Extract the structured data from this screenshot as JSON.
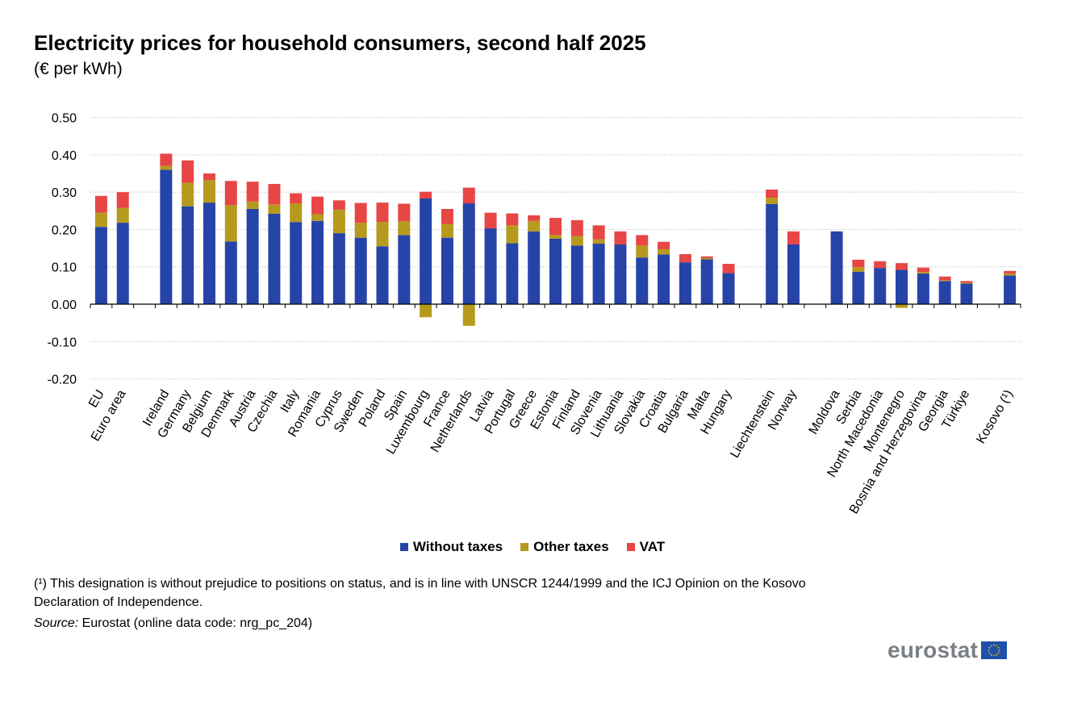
{
  "chart_data": {
    "type": "bar",
    "stacked": true,
    "title": "Electricity prices for household consumers, second half 2025",
    "subtitle": "(€ per kWh)",
    "ylim": [
      -0.2,
      0.5
    ],
    "yticks": [
      "0.50",
      "0.40",
      "0.30",
      "0.20",
      "0.10",
      "0.00",
      "-0.10",
      "-0.20"
    ],
    "grid": true,
    "legend_position": "bottom",
    "categories": [
      "EU",
      "Euro area",
      "",
      "Ireland",
      "Germany",
      "Belgium",
      "Denmark",
      "Austria",
      "Czechia",
      "Italy",
      "Romania",
      "Cyprus",
      "Sweden",
      "Poland",
      "Spain",
      "Luxembourg",
      "France",
      "Netherlands",
      "Latvia",
      "Portugal",
      "Greece",
      "Estonia",
      "Finland",
      "Slovenia",
      "Lithuania",
      "Slovakia",
      "Croatia",
      "Bulgaria",
      "Malta",
      "Hungary",
      "",
      "Liechtenstein",
      "Norway",
      "",
      "Moldova",
      "Serbia",
      "North Macedonia",
      "Montenegro",
      "Bosnia and Herzegovina",
      "Georgia",
      "Türkiye",
      "",
      "Kosovo (¹)"
    ],
    "series": [
      {
        "name": "Without taxes",
        "color": "#2644a8",
        "values": [
          0.207,
          0.218,
          null,
          0.36,
          0.262,
          0.272,
          0.168,
          0.255,
          0.242,
          0.22,
          0.223,
          0.19,
          0.178,
          0.155,
          0.185,
          0.283,
          0.178,
          0.27,
          0.203,
          0.163,
          0.195,
          0.175,
          0.157,
          0.162,
          0.16,
          0.125,
          0.133,
          0.112,
          0.12,
          0.083,
          null,
          0.268,
          0.16,
          null,
          0.195,
          0.087,
          0.097,
          0.092,
          0.082,
          0.062,
          0.055,
          null,
          0.077
        ]
      },
      {
        "name": "Other taxes",
        "color": "#b69a1e",
        "values": [
          0.038,
          0.04,
          null,
          0.01,
          0.063,
          0.06,
          0.097,
          0.02,
          0.025,
          0.05,
          0.018,
          0.063,
          0.04,
          0.065,
          0.037,
          -0.035,
          0.037,
          -0.058,
          0.0,
          0.048,
          0.028,
          0.01,
          0.025,
          0.012,
          0.0,
          0.032,
          0.014,
          0.0,
          0.003,
          0.0,
          null,
          0.017,
          0.0,
          null,
          0.0,
          0.012,
          0.0,
          -0.01,
          0.004,
          0.002,
          0.002,
          null,
          0.005
        ]
      },
      {
        "name": "VAT",
        "color": "#e74645",
        "values": [
          0.045,
          0.042,
          null,
          0.033,
          0.06,
          0.018,
          0.065,
          0.053,
          0.055,
          0.027,
          0.047,
          0.025,
          0.053,
          0.052,
          0.047,
          0.018,
          0.04,
          0.042,
          0.042,
          0.032,
          0.015,
          0.046,
          0.043,
          0.037,
          0.035,
          0.028,
          0.02,
          0.022,
          0.005,
          0.025,
          null,
          0.022,
          0.035,
          null,
          0.0,
          0.02,
          0.018,
          0.018,
          0.012,
          0.01,
          0.005,
          null,
          0.007
        ]
      }
    ]
  },
  "legend": {
    "without_taxes": "Without taxes",
    "other_taxes": "Other taxes",
    "vat": "VAT"
  },
  "footnote": "(¹) This designation is without prejudice to positions on status, and is in line with UNSCR 1244/1999 and the ICJ Opinion on the Kosovo Declaration of Independence.",
  "source": {
    "label": "Source:",
    "text": " Eurostat (online data code: nrg_pc_204)"
  },
  "logo": {
    "text": "eurostat"
  }
}
